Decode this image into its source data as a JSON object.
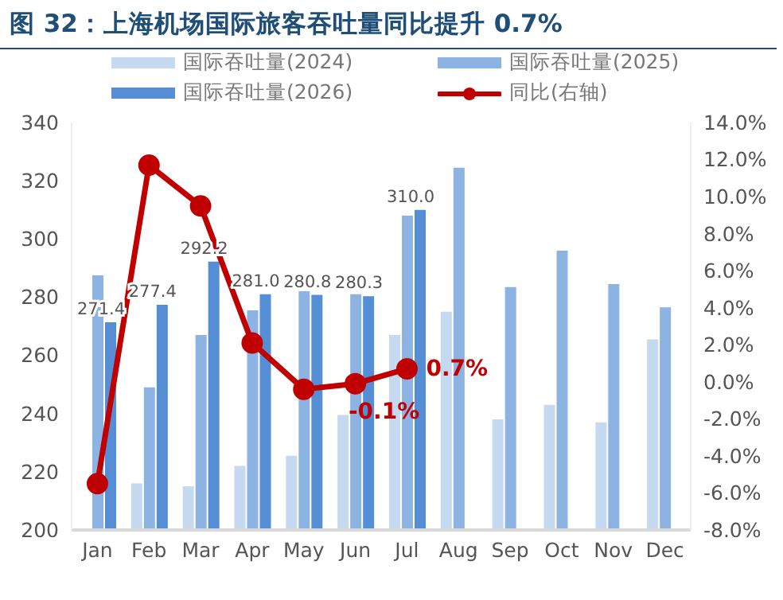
{
  "chart_data": {
    "type": "bar",
    "title": "图 32：上海机场国际旅客吞吐量同比提升 0.7%",
    "categories": [
      "Jan",
      "Feb",
      "Mar",
      "Apr",
      "May",
      "Jun",
      "Jul",
      "Aug",
      "Sep",
      "Oct",
      "Nov",
      "Dec"
    ],
    "series": [
      {
        "name": "国际吞吐量(2024)",
        "color": "#c5d9f0",
        "values": [
          200,
          216,
          215,
          222,
          225.5,
          239.5,
          267,
          275,
          238,
          243,
          237,
          265.5
        ]
      },
      {
        "name": "国际吞吐量(2025)",
        "color": "#8db3e2",
        "values": [
          287.5,
          249,
          267,
          275.5,
          282,
          281,
          308,
          324.5,
          283.5,
          296,
          284.5,
          276.5
        ]
      },
      {
        "name": "国际吞吐量(2026)",
        "color": "#558ed5",
        "values": [
          271.4,
          277.4,
          292.2,
          281.0,
          280.8,
          280.3,
          310.0,
          null,
          null,
          null,
          null,
          null
        ],
        "value_labels": [
          "271.4",
          "277.4",
          "292.2",
          "281.0",
          "280.8",
          "280.3",
          "310.0",
          null,
          null,
          null,
          null,
          null
        ]
      },
      {
        "name": "同比(右轴)",
        "type": "line",
        "axis": "y2",
        "color": "#c00000",
        "values": [
          -5.5,
          11.7,
          9.5,
          2.1,
          -0.4,
          -0.1,
          0.7,
          null,
          null,
          null,
          null,
          null
        ],
        "value_labels": [
          null,
          null,
          null,
          null,
          null,
          "-0.1%",
          "0.7%",
          null,
          null,
          null,
          null,
          null
        ]
      }
    ],
    "ylim": [
      200,
      340
    ],
    "yticks": [
      200,
      220,
      240,
      260,
      280,
      300,
      320,
      340
    ],
    "y2lim": [
      -8,
      14
    ],
    "y2ticks": [
      {
        "value": -8,
        "label": "-8.0%"
      },
      {
        "value": -6,
        "label": "-6.0%"
      },
      {
        "value": -4,
        "label": "-4.0%"
      },
      {
        "value": -2,
        "label": "-2.0%"
      },
      {
        "value": 0,
        "label": "0.0%"
      },
      {
        "value": 2,
        "label": "2.0%"
      },
      {
        "value": 4,
        "label": "4.0%"
      },
      {
        "value": 6,
        "label": "6.0%"
      },
      {
        "value": 8,
        "label": "8.0%"
      },
      {
        "value": 10,
        "label": "10.0%"
      },
      {
        "value": 12,
        "label": "12.0%"
      },
      {
        "value": 14,
        "label": "14.0%"
      }
    ],
    "legend": "top",
    "marker": "circle"
  }
}
